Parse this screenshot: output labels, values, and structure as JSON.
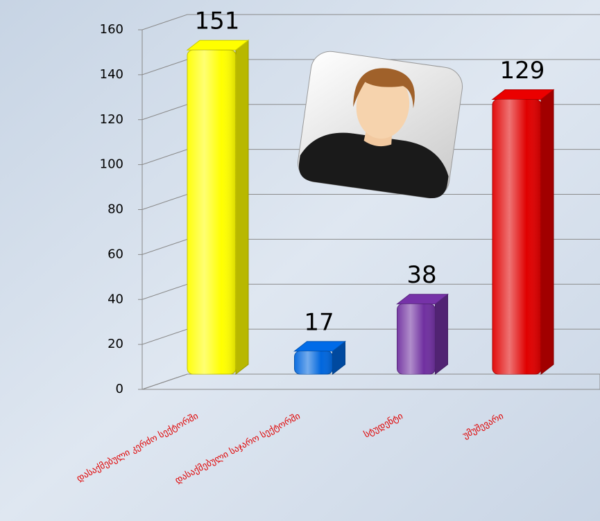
{
  "chart_data": {
    "type": "bar3d",
    "categories": [
      "დასაქმებული კერძო სექტორში",
      "დასაქმებული საჯარო სექტორში",
      "სტუდენტი",
      "უმუშევარი"
    ],
    "values": [
      151,
      17,
      38,
      129
    ],
    "colors": [
      "#ffff00",
      "#0066dd",
      "#7030a0",
      "#e00000"
    ],
    "ylim": [
      0,
      160
    ],
    "yticks": [
      0,
      20,
      40,
      60,
      80,
      100,
      120,
      140,
      160
    ],
    "grid": true
  }
}
